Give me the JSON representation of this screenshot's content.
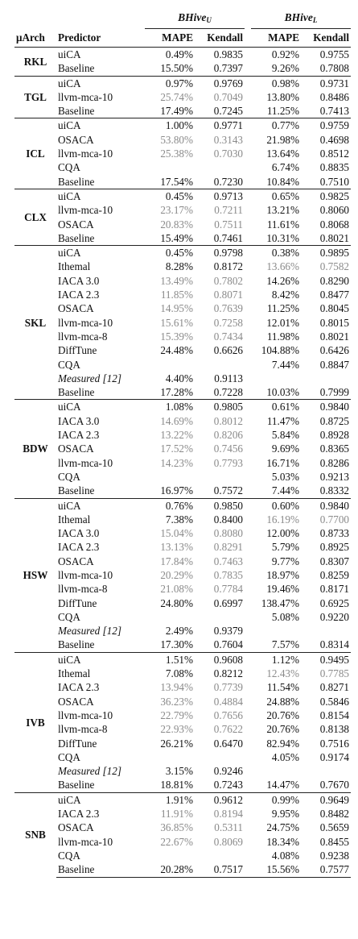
{
  "header": {
    "dataset_u_base": "BHive",
    "dataset_u_sub": "U",
    "dataset_l_base": "BHive",
    "dataset_l_sub": "L",
    "col_arch": "μArch",
    "col_predictor": "Predictor",
    "col_mape": "MAPE",
    "col_kendall": "Kendall"
  },
  "groups": [
    {
      "arch": "RKL",
      "rows": [
        {
          "p": "uiCA",
          "mu": "0.49%",
          "ku": "0.9835",
          "ml": "0.92%",
          "kl": "0.9755"
        },
        {
          "p": "Baseline",
          "mu": "15.50%",
          "ku": "0.7397",
          "ml": "9.26%",
          "kl": "0.7808"
        }
      ]
    },
    {
      "arch": "TGL",
      "rows": [
        {
          "p": "uiCA",
          "mu": "0.97%",
          "ku": "0.9769",
          "ml": "0.98%",
          "kl": "0.9731"
        },
        {
          "p": "llvm-mca-10",
          "mu": "25.74%",
          "ku": "0.7049",
          "ml": "13.80%",
          "kl": "0.8486",
          "gu": true
        },
        {
          "p": "Baseline",
          "mu": "17.49%",
          "ku": "0.7245",
          "ml": "11.25%",
          "kl": "0.7413"
        }
      ]
    },
    {
      "arch": "ICL",
      "rows": [
        {
          "p": "uiCA",
          "mu": "1.00%",
          "ku": "0.9771",
          "ml": "0.77%",
          "kl": "0.9759"
        },
        {
          "p": "OSACA",
          "mu": "53.80%",
          "ku": "0.3143",
          "ml": "21.98%",
          "kl": "0.4698",
          "gu": true
        },
        {
          "p": "llvm-mca-10",
          "mu": "25.38%",
          "ku": "0.7030",
          "ml": "13.64%",
          "kl": "0.8512",
          "gu": true
        },
        {
          "p": "CQA",
          "mu": "",
          "ku": "",
          "ml": "6.74%",
          "kl": "0.8835"
        },
        {
          "p": "Baseline",
          "mu": "17.54%",
          "ku": "0.7230",
          "ml": "10.84%",
          "kl": "0.7510"
        }
      ]
    },
    {
      "arch": "CLX",
      "rows": [
        {
          "p": "uiCA",
          "mu": "0.45%",
          "ku": "0.9713",
          "ml": "0.65%",
          "kl": "0.9825"
        },
        {
          "p": "llvm-mca-10",
          "mu": "23.17%",
          "ku": "0.7211",
          "ml": "13.21%",
          "kl": "0.8060",
          "gu": true
        },
        {
          "p": "OSACA",
          "mu": "20.83%",
          "ku": "0.7511",
          "ml": "11.61%",
          "kl": "0.8068",
          "gu": true
        },
        {
          "p": "Baseline",
          "mu": "15.49%",
          "ku": "0.7461",
          "ml": "10.31%",
          "kl": "0.8021"
        }
      ]
    },
    {
      "arch": "SKL",
      "rows": [
        {
          "p": "uiCA",
          "mu": "0.45%",
          "ku": "0.9798",
          "ml": "0.38%",
          "kl": "0.9895"
        },
        {
          "p": "Ithemal",
          "mu": "8.28%",
          "ku": "0.8172",
          "ml": "13.66%",
          "kl": "0.7582",
          "gl": true
        },
        {
          "p": "IACA 3.0",
          "mu": "13.49%",
          "ku": "0.7802",
          "ml": "14.26%",
          "kl": "0.8290",
          "gu": true
        },
        {
          "p": "IACA 2.3",
          "mu": "11.85%",
          "ku": "0.8071",
          "ml": "8.42%",
          "kl": "0.8477",
          "gu": true
        },
        {
          "p": "OSACA",
          "mu": "14.95%",
          "ku": "0.7639",
          "ml": "11.25%",
          "kl": "0.8045",
          "gu": true
        },
        {
          "p": "llvm-mca-10",
          "mu": "15.61%",
          "ku": "0.7258",
          "ml": "12.01%",
          "kl": "0.8015",
          "gu": true
        },
        {
          "p": "llvm-mca-8",
          "mu": "15.39%",
          "ku": "0.7434",
          "ml": "11.98%",
          "kl": "0.8021",
          "gu": true
        },
        {
          "p": "DiffTune",
          "mu": "24.48%",
          "ku": "0.6626",
          "ml": "104.88%",
          "kl": "0.6426"
        },
        {
          "p": "CQA",
          "mu": "",
          "ku": "",
          "ml": "7.44%",
          "kl": "0.8847"
        },
        {
          "p": "Measured [12]",
          "mu": "4.40%",
          "ku": "0.9113",
          "ml": "",
          "kl": "",
          "it": true
        },
        {
          "p": "Baseline",
          "mu": "17.28%",
          "ku": "0.7228",
          "ml": "10.03%",
          "kl": "0.7999"
        }
      ]
    },
    {
      "arch": "BDW",
      "rows": [
        {
          "p": "uiCA",
          "mu": "1.08%",
          "ku": "0.9805",
          "ml": "0.61%",
          "kl": "0.9840"
        },
        {
          "p": "IACA 3.0",
          "mu": "14.69%",
          "ku": "0.8012",
          "ml": "11.47%",
          "kl": "0.8725",
          "gu": true
        },
        {
          "p": "IACA 2.3",
          "mu": "13.22%",
          "ku": "0.8206",
          "ml": "5.84%",
          "kl": "0.8928",
          "gu": true
        },
        {
          "p": "OSACA",
          "mu": "17.52%",
          "ku": "0.7456",
          "ml": "9.69%",
          "kl": "0.8365",
          "gu": true
        },
        {
          "p": "llvm-mca-10",
          "mu": "14.23%",
          "ku": "0.7793",
          "ml": "16.71%",
          "kl": "0.8286",
          "gu": true
        },
        {
          "p": "CQA",
          "mu": "",
          "ku": "",
          "ml": "5.03%",
          "kl": "0.9213"
        },
        {
          "p": "Baseline",
          "mu": "16.97%",
          "ku": "0.7572",
          "ml": "7.44%",
          "kl": "0.8332"
        }
      ]
    },
    {
      "arch": "HSW",
      "rows": [
        {
          "p": "uiCA",
          "mu": "0.76%",
          "ku": "0.9850",
          "ml": "0.60%",
          "kl": "0.9840"
        },
        {
          "p": "Ithemal",
          "mu": "7.38%",
          "ku": "0.8400",
          "ml": "16.19%",
          "kl": "0.7700",
          "gl": true
        },
        {
          "p": "IACA 3.0",
          "mu": "15.04%",
          "ku": "0.8080",
          "ml": "12.00%",
          "kl": "0.8733",
          "gu": true
        },
        {
          "p": "IACA 2.3",
          "mu": "13.13%",
          "ku": "0.8291",
          "ml": "5.79%",
          "kl": "0.8925",
          "gu": true
        },
        {
          "p": "OSACA",
          "mu": "17.84%",
          "ku": "0.7463",
          "ml": "9.77%",
          "kl": "0.8307",
          "gu": true
        },
        {
          "p": "llvm-mca-10",
          "mu": "20.29%",
          "ku": "0.7835",
          "ml": "18.97%",
          "kl": "0.8259",
          "gu": true
        },
        {
          "p": "llvm-mca-8",
          "mu": "21.08%",
          "ku": "0.7784",
          "ml": "19.46%",
          "kl": "0.8171",
          "gu": true
        },
        {
          "p": "DiffTune",
          "mu": "24.80%",
          "ku": "0.6997",
          "ml": "138.47%",
          "kl": "0.6925"
        },
        {
          "p": "CQA",
          "mu": "",
          "ku": "",
          "ml": "5.08%",
          "kl": "0.9220"
        },
        {
          "p": "Measured [12]",
          "mu": "2.49%",
          "ku": "0.9379",
          "ml": "",
          "kl": "",
          "it": true
        },
        {
          "p": "Baseline",
          "mu": "17.30%",
          "ku": "0.7604",
          "ml": "7.57%",
          "kl": "0.8314"
        }
      ]
    },
    {
      "arch": "IVB",
      "rows": [
        {
          "p": "uiCA",
          "mu": "1.51%",
          "ku": "0.9608",
          "ml": "1.12%",
          "kl": "0.9495"
        },
        {
          "p": "Ithemal",
          "mu": "7.08%",
          "ku": "0.8212",
          "ml": "12.43%",
          "kl": "0.7785",
          "gl": true
        },
        {
          "p": "IACA 2.3",
          "mu": "13.94%",
          "ku": "0.7739",
          "ml": "11.54%",
          "kl": "0.8271",
          "gu": true
        },
        {
          "p": "OSACA",
          "mu": "36.23%",
          "ku": "0.4884",
          "ml": "24.88%",
          "kl": "0.5846",
          "gu": true
        },
        {
          "p": "llvm-mca-10",
          "mu": "22.79%",
          "ku": "0.7656",
          "ml": "20.76%",
          "kl": "0.8154",
          "gu": true
        },
        {
          "p": "llvm-mca-8",
          "mu": "22.93%",
          "ku": "0.7622",
          "ml": "20.76%",
          "kl": "0.8138",
          "gu": true
        },
        {
          "p": "DiffTune",
          "mu": "26.21%",
          "ku": "0.6470",
          "ml": "82.94%",
          "kl": "0.7516"
        },
        {
          "p": "CQA",
          "mu": "",
          "ku": "",
          "ml": "4.05%",
          "kl": "0.9174"
        },
        {
          "p": "Measured [12]",
          "mu": "3.15%",
          "ku": "0.9246",
          "ml": "",
          "kl": "",
          "it": true
        },
        {
          "p": "Baseline",
          "mu": "18.81%",
          "ku": "0.7243",
          "ml": "14.47%",
          "kl": "0.7670"
        }
      ]
    },
    {
      "arch": "SNB",
      "rows": [
        {
          "p": "uiCA",
          "mu": "1.91%",
          "ku": "0.9612",
          "ml": "0.99%",
          "kl": "0.9649"
        },
        {
          "p": "IACA 2.3",
          "mu": "11.91%",
          "ku": "0.8194",
          "ml": "9.95%",
          "kl": "0.8482",
          "gu": true
        },
        {
          "p": "OSACA",
          "mu": "36.85%",
          "ku": "0.5311",
          "ml": "24.75%",
          "kl": "0.5659",
          "gu": true
        },
        {
          "p": "llvm-mca-10",
          "mu": "22.67%",
          "ku": "0.8069",
          "ml": "18.34%",
          "kl": "0.8455",
          "gu": true
        },
        {
          "p": "CQA",
          "mu": "",
          "ku": "",
          "ml": "4.08%",
          "kl": "0.9238"
        },
        {
          "p": "Baseline",
          "mu": "20.28%",
          "ku": "0.7517",
          "ml": "15.56%",
          "kl": "0.7577"
        }
      ]
    }
  ]
}
